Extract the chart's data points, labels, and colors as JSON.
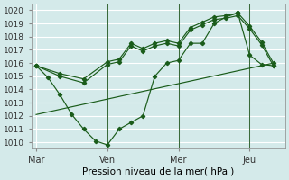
{
  "title": "Pression niveau de la mer( hPa )",
  "ylabel_vals": [
    1010,
    1011,
    1012,
    1013,
    1014,
    1015,
    1016,
    1017,
    1018,
    1019,
    1020
  ],
  "ylim": [
    1009.5,
    1020.5
  ],
  "xtick_labels": [
    "Mar",
    "Ven",
    "Mer",
    "Jeu"
  ],
  "xtick_positions": [
    0,
    3,
    6,
    9
  ],
  "background_color": "#d4eaea",
  "grid_color": "#ffffff",
  "line_color": "#1a5c1a",
  "vlines_x": [
    3,
    6,
    9
  ],
  "xlim": [
    -0.2,
    10.5
  ],
  "line_volatile": {
    "x": [
      0,
      0.5,
      1.0,
      1.5,
      2.0,
      2.5,
      3.0,
      3.5,
      4.0,
      4.5,
      5.0,
      5.5,
      6.0,
      6.5,
      7.0,
      7.5,
      8.0,
      8.5,
      9.0,
      9.5,
      10.0
    ],
    "y": [
      1015.8,
      1014.9,
      1013.6,
      1012.1,
      1011.0,
      1010.1,
      1009.8,
      1011.0,
      1011.5,
      1012.0,
      1015.0,
      1016.0,
      1016.2,
      1017.5,
      1017.5,
      1019.0,
      1019.5,
      1019.8,
      1016.6,
      1015.9,
      1015.8
    ]
  },
  "line_upper1": {
    "x": [
      0,
      1.0,
      2.0,
      3.0,
      3.5,
      4.0,
      4.5,
      5.0,
      5.5,
      6.0,
      6.5,
      7.0,
      7.5,
      8.0,
      8.5,
      9.0,
      9.5,
      10.0
    ],
    "y": [
      1015.8,
      1015.2,
      1014.8,
      1016.1,
      1016.3,
      1017.5,
      1017.1,
      1017.5,
      1017.7,
      1017.5,
      1018.7,
      1019.1,
      1019.5,
      1019.6,
      1019.8,
      1018.8,
      1017.6,
      1016.0
    ]
  },
  "line_upper2": {
    "x": [
      0,
      1.0,
      2.0,
      3.0,
      3.5,
      4.0,
      4.5,
      5.0,
      5.5,
      6.0,
      6.5,
      7.0,
      7.5,
      8.0,
      8.5,
      9.0,
      9.5,
      10.0
    ],
    "y": [
      1015.8,
      1015.0,
      1014.5,
      1015.9,
      1016.1,
      1017.3,
      1016.9,
      1017.3,
      1017.5,
      1017.3,
      1018.5,
      1018.9,
      1019.3,
      1019.4,
      1019.6,
      1018.6,
      1017.4,
      1015.8
    ]
  },
  "line_diagonal": {
    "x": [
      0,
      10.0
    ],
    "y": [
      1012.1,
      1016.0
    ]
  }
}
